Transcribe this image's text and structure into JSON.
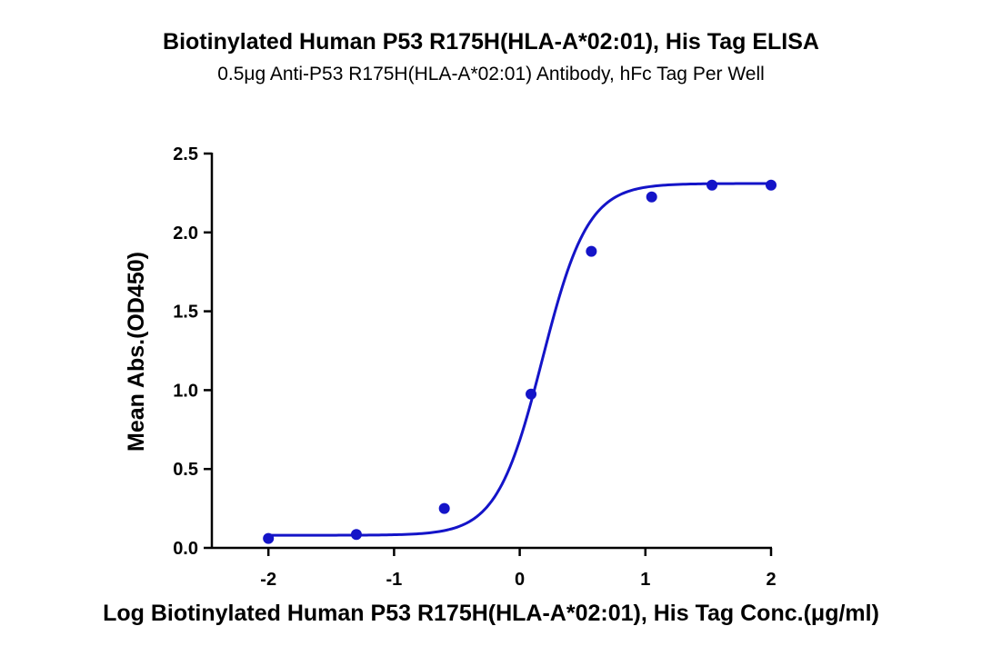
{
  "chart_data": {
    "type": "scatter",
    "title": "Biotinylated Human P53 R175H(HLA-A*02:01), His Tag ELISA",
    "subtitle": "0.5μg Anti-P53 R175H(HLA-A*02:01) Antibody, hFc Tag Per Well",
    "xlabel": "Log Biotinylated Human P53 R175H(HLA-A*02:01), His Tag Conc.(μg/ml)",
    "ylabel": "Mean Abs.(OD450)",
    "xlim": [
      -2.45,
      2
    ],
    "ylim": [
      0,
      2.5
    ],
    "xticks": [
      -2,
      -1,
      0,
      1,
      2
    ],
    "xtick_labels": [
      "-2",
      "-1",
      "0",
      "1",
      "2"
    ],
    "yticks": [
      0,
      0.5,
      1,
      1.5,
      2,
      2.5
    ],
    "ytick_labels": [
      "0.0",
      "0.5",
      "1.0",
      "1.5",
      "2.0",
      "2.5"
    ],
    "grid": false,
    "series": [
      {
        "name": "OD450",
        "x": [
          -2.0,
          -1.3,
          -0.6,
          0.09,
          0.57,
          1.05,
          1.53,
          2.0
        ],
        "y": [
          0.06,
          0.085,
          0.25,
          0.975,
          1.88,
          2.225,
          2.3,
          2.3
        ],
        "color": "#1414c8"
      }
    ],
    "fit": {
      "type": "4PL",
      "bottom": 0.08,
      "top": 2.31,
      "logEC50": 0.18,
      "hill": 2.4,
      "color": "#1414c8"
    }
  }
}
